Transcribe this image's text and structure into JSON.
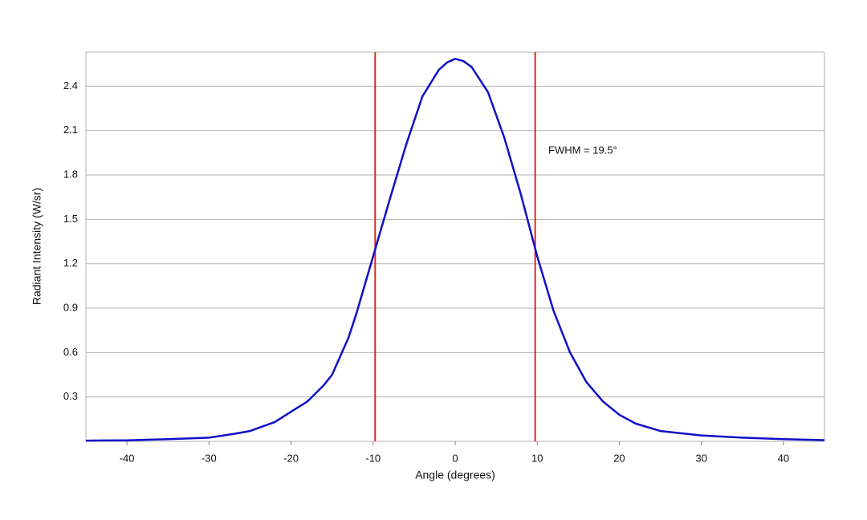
{
  "chart_data": {
    "type": "line",
    "x_label": "Angle (degrees)",
    "y_label": "Radiant Intensity (W/sr)",
    "annotation": "FWHM = 19.5°",
    "x": [
      -45,
      -40,
      -35,
      -30,
      -27,
      -25,
      -22,
      -20,
      -18,
      -16,
      -15,
      -13,
      -12,
      -11,
      -10,
      -8,
      -6,
      -4,
      -2,
      -1,
      0,
      1,
      2,
      4,
      6,
      8,
      10,
      12,
      14,
      16,
      18,
      20,
      22,
      25,
      30,
      35,
      40,
      45
    ],
    "series": [
      {
        "color": "#1010c8",
        "values": [
          0.005,
          0.007,
          0.015,
          0.025,
          0.05,
          0.07,
          0.13,
          0.2,
          0.27,
          0.38,
          0.45,
          0.7,
          0.87,
          1.06,
          1.25,
          1.63,
          2.0,
          2.33,
          2.51,
          2.56,
          2.585,
          2.57,
          2.53,
          2.36,
          2.05,
          1.67,
          1.25,
          0.88,
          0.6,
          0.4,
          0.27,
          0.18,
          0.12,
          0.07,
          0.04,
          0.025,
          0.015,
          0.008
        ]
      }
    ],
    "vlines": [
      -9.75,
      9.75
    ],
    "vline_color": "#d42a2a",
    "xlim": [
      -45,
      45
    ],
    "ylim": [
      0,
      2.63
    ],
    "xticks": [
      -40,
      -30,
      -20,
      -10,
      0,
      10,
      20,
      30,
      40
    ],
    "yticks": [
      0.3,
      0.6,
      0.9,
      1.2,
      1.5,
      1.8,
      2.1,
      2.4
    ],
    "grid": true
  }
}
